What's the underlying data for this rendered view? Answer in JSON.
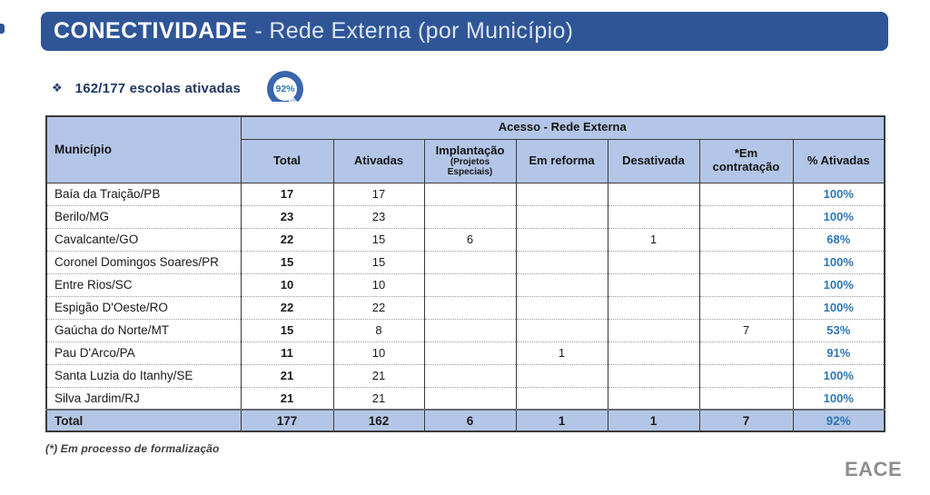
{
  "header": {
    "title_main": "CONECTIVIDADE",
    "title_rest": "- Rede Externa (por Município)"
  },
  "summary": {
    "bullet": "❖",
    "text": "162/177 escolas ativadas",
    "gauge_value": "92%",
    "gauge_percent": 92
  },
  "table": {
    "group_header": "Acesso - Rede Externa",
    "municipio_header": "Município",
    "columns": [
      "Total",
      "Ativadas",
      "Implantação",
      "Em reforma",
      "Desativada",
      "*Em contratação",
      "% Ativadas"
    ],
    "implantacao_sub": "(Projetos Especiais)",
    "rows": [
      {
        "municipio": "Baía da Traição/PB",
        "total": "17",
        "ativadas": "17",
        "implantacao": "",
        "em_reforma": "",
        "desativada": "",
        "em_contratacao": "",
        "pct": "100%"
      },
      {
        "municipio": "Berilo/MG",
        "total": "23",
        "ativadas": "23",
        "implantacao": "",
        "em_reforma": "",
        "desativada": "",
        "em_contratacao": "",
        "pct": "100%"
      },
      {
        "municipio": "Cavalcante/GO",
        "total": "22",
        "ativadas": "15",
        "implantacao": "6",
        "em_reforma": "",
        "desativada": "1",
        "em_contratacao": "",
        "pct": "68%"
      },
      {
        "municipio": "Coronel Domingos Soares/PR",
        "total": "15",
        "ativadas": "15",
        "implantacao": "",
        "em_reforma": "",
        "desativada": "",
        "em_contratacao": "",
        "pct": "100%"
      },
      {
        "municipio": "Entre Rios/SC",
        "total": "10",
        "ativadas": "10",
        "implantacao": "",
        "em_reforma": "",
        "desativada": "",
        "em_contratacao": "",
        "pct": "100%"
      },
      {
        "municipio": "Espigão D'Oeste/RO",
        "total": "22",
        "ativadas": "22",
        "implantacao": "",
        "em_reforma": "",
        "desativada": "",
        "em_contratacao": "",
        "pct": "100%"
      },
      {
        "municipio": "Gaúcha do Norte/MT",
        "total": "15",
        "ativadas": "8",
        "implantacao": "",
        "em_reforma": "",
        "desativada": "",
        "em_contratacao": "7",
        "pct": "53%"
      },
      {
        "municipio": "Pau D'Arco/PA",
        "total": "11",
        "ativadas": "10",
        "implantacao": "",
        "em_reforma": "1",
        "desativada": "",
        "em_contratacao": "",
        "pct": "91%"
      },
      {
        "municipio": "Santa Luzia do Itanhy/SE",
        "total": "21",
        "ativadas": "21",
        "implantacao": "",
        "em_reforma": "",
        "desativada": "",
        "em_contratacao": "",
        "pct": "100%"
      },
      {
        "municipio": "Silva Jardim/RJ",
        "total": "21",
        "ativadas": "21",
        "implantacao": "",
        "em_reforma": "",
        "desativada": "",
        "em_contratacao": "",
        "pct": "100%"
      }
    ],
    "total_row": {
      "municipio": "Total",
      "total": "177",
      "ativadas": "162",
      "implantacao": "6",
      "em_reforma": "1",
      "desativada": "1",
      "em_contratacao": "7",
      "pct": "92%"
    }
  },
  "footnote": "(*) Em processo de formalização",
  "logo": "EACE",
  "colors": {
    "bar_blue": "#2F5597",
    "header_fill": "#B4C6E7",
    "pct_blue": "#2E75B6",
    "navy_text": "#1F3864",
    "gauge_blue": "#3A66AD",
    "gauge_rest": "#C9D6ED",
    "logo_gray": "#8E8E8E"
  }
}
